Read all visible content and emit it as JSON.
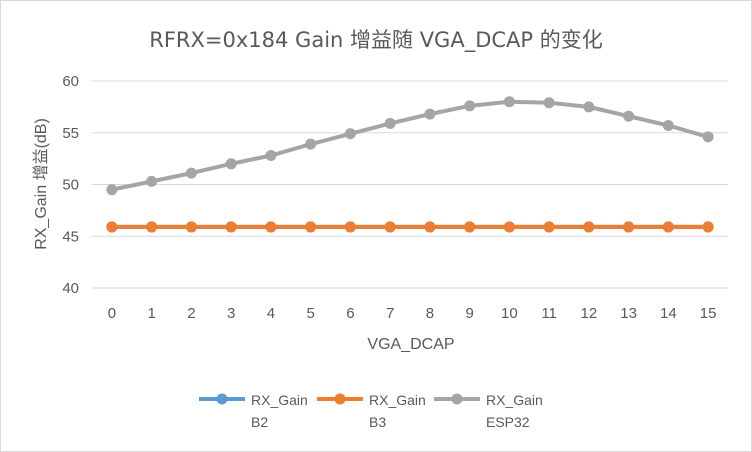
{
  "chart_data": {
    "type": "line",
    "title": "RFRX=0x184 Gain 增益随 VGA_DCAP 的变化",
    "xlabel": "VGA_DCAP",
    "ylabel": "RX_Gain 增益(dB)",
    "x": [
      "0",
      "1",
      "2",
      "3",
      "4",
      "5",
      "6",
      "7",
      "8",
      "9",
      "10",
      "11",
      "12",
      "13",
      "14",
      "15"
    ],
    "ylim": [
      40,
      60
    ],
    "yticks": [
      "40",
      "45",
      "50",
      "55",
      "60"
    ],
    "grid": true,
    "legend_position": "bottom",
    "series": [
      {
        "name": "RX_Gain B2",
        "name_lines": [
          "RX_Gain",
          "B2"
        ],
        "color": "#5b9bd5",
        "values": [
          45.9,
          45.9,
          45.9,
          45.9,
          45.9,
          45.9,
          45.9,
          45.9,
          45.9,
          45.9,
          45.9,
          45.9,
          45.9,
          45.9,
          45.9,
          45.9
        ]
      },
      {
        "name": "RX_Gain B3",
        "name_lines": [
          "RX_Gain",
          "B3"
        ],
        "color": "#ed7d31",
        "values": [
          45.9,
          45.9,
          45.9,
          45.9,
          45.9,
          45.9,
          45.9,
          45.9,
          45.9,
          45.9,
          45.9,
          45.9,
          45.9,
          45.9,
          45.9,
          45.9
        ]
      },
      {
        "name": "RX_Gain ESP32",
        "name_lines": [
          "RX_Gain",
          "ESP32"
        ],
        "color": "#a5a5a5",
        "values": [
          49.5,
          50.3,
          51.1,
          52.0,
          52.8,
          53.9,
          54.9,
          55.9,
          56.8,
          57.6,
          58.0,
          57.9,
          57.5,
          56.6,
          55.7,
          54.6
        ]
      }
    ]
  }
}
